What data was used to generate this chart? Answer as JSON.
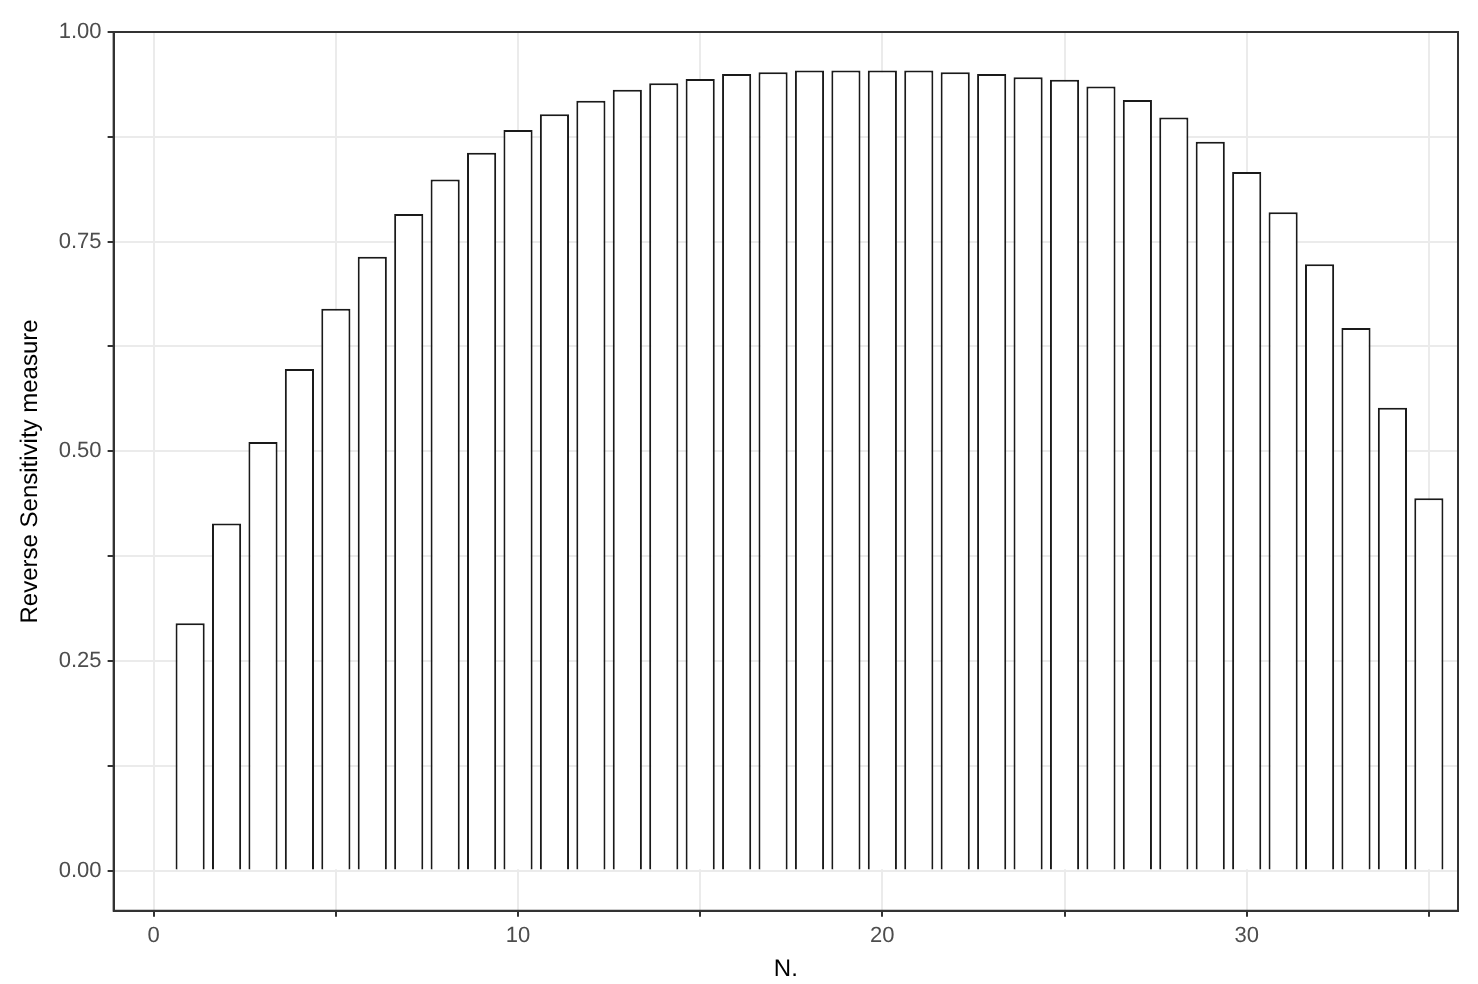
{
  "chart_data": {
    "type": "bar",
    "xlabel": "N.",
    "ylabel": "Reverse Sensitivity measure",
    "x": [
      1,
      2,
      3,
      4,
      5,
      6,
      7,
      8,
      9,
      10,
      11,
      12,
      13,
      14,
      15,
      16,
      17,
      18,
      19,
      20,
      21,
      22,
      23,
      24,
      25,
      26,
      27,
      28,
      29,
      30,
      31,
      32,
      33,
      34,
      35
    ],
    "series": [
      {
        "color": "#ffffff",
        "values": [
          0.295,
          0.414,
          0.511,
          0.598,
          0.67,
          0.732,
          0.783,
          0.824,
          0.856,
          0.883,
          0.902,
          0.918,
          0.931,
          0.939,
          0.944,
          0.95,
          0.952,
          0.954,
          0.954,
          0.954,
          0.954,
          0.952,
          0.95,
          0.946,
          0.943,
          0.935,
          0.919,
          0.898,
          0.869,
          0.833,
          0.785,
          0.723,
          0.647,
          0.552,
          0.444
        ]
      }
    ],
    "xlim": [
      -1.1,
      35.8
    ],
    "xticks": [
      0,
      {
        "value": 5,
        "label": null
      },
      10,
      {
        "value": 15,
        "label": null
      },
      20,
      {
        "value": 25,
        "label": null
      },
      30,
      {
        "value": 35,
        "label": null
      }
    ],
    "ylim": [
      -0.048,
      1.0
    ],
    "yticks": [
      {
        "value": 0,
        "label": "0.00"
      },
      {
        "value": 0.125,
        "label": null
      },
      {
        "value": 0.25,
        "label": "0.25"
      },
      {
        "value": 0.375,
        "label": null
      },
      {
        "value": 0.5,
        "label": "0.50"
      },
      {
        "value": 0.625,
        "label": null
      },
      {
        "value": 0.75,
        "label": "0.75"
      },
      {
        "value": 0.875,
        "label": null
      },
      {
        "value": 1,
        "label": "1.00"
      }
    ],
    "grid": true,
    "legend": false
  }
}
